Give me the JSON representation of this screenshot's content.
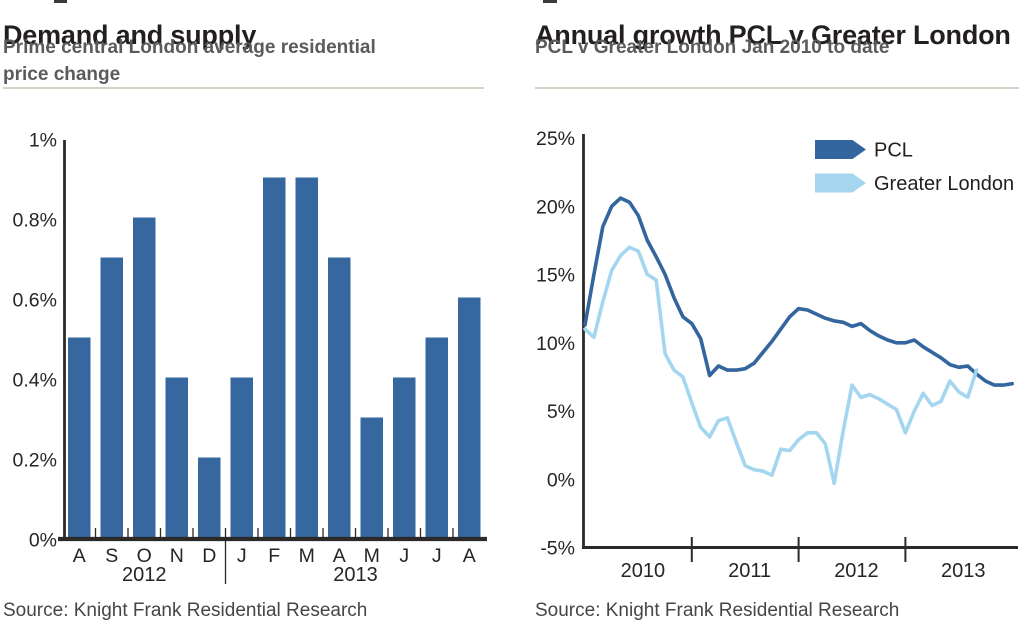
{
  "colors": {
    "bar_blue": "#36679E",
    "dark_blue": "#33659E",
    "light_blue": "#A5D6EF",
    "title_text": "#231F20",
    "subtitle_text": "#5B5B5D",
    "rule": "#D8D2C6",
    "axis": "#2B2A28",
    "axis_text": "#262524",
    "source_text": "#464547",
    "legend_text": "#231F20",
    "background": "#FFFFFF"
  },
  "chart_data": [
    {
      "id": "demand-and-supply",
      "type": "bar",
      "title": "Demand and supply",
      "subtitle_lines": [
        "Prime central London average residential",
        "price change"
      ],
      "source": "Source: Knight Frank Residential Research",
      "unit": "%",
      "categories": [
        "A",
        "S",
        "O",
        "N",
        "D",
        "J",
        "F",
        "M",
        "A",
        "M",
        "J",
        "J",
        "A"
      ],
      "values": [
        0.5,
        0.7,
        0.8,
        0.4,
        0.2,
        0.4,
        0.9,
        0.9,
        0.7,
        0.3,
        0.4,
        0.5,
        0.6
      ],
      "year_groups": [
        {
          "label": "2012",
          "from": 0,
          "to": 4
        },
        {
          "label": "2013",
          "from": 5,
          "to": 12
        }
      ],
      "ylim": [
        0,
        1
      ],
      "yticks": [
        {
          "v": 0,
          "label": "0%"
        },
        {
          "v": 0.2,
          "label": "0.2%"
        },
        {
          "v": 0.4,
          "label": "0.4%"
        },
        {
          "v": 0.6,
          "label": "0.6%"
        },
        {
          "v": 0.8,
          "label": "0.8%"
        },
        {
          "v": 1,
          "label": "1%"
        }
      ],
      "grid": false,
      "legend": "none"
    },
    {
      "id": "annual-growth-pcl-v-greater-london",
      "type": "line",
      "title": "Annual growth PCL v Greater London",
      "subtitle_lines": [
        "PCL v Greater London Jan 2010 to date"
      ],
      "source": "Source: Knight Frank Residential Research",
      "unit": "%",
      "x_start": "Jan 2010",
      "x_interval": "month",
      "series": [
        {
          "name": "PCL",
          "color": "#33659E",
          "values": [
            11.3,
            15.0,
            18.5,
            20.0,
            20.6,
            20.3,
            19.3,
            17.5,
            16.3,
            15.0,
            13.3,
            11.9,
            11.4,
            10.3,
            7.6,
            8.3,
            8.0,
            8.0,
            8.1,
            8.5,
            9.3,
            10.1,
            11.0,
            11.9,
            12.5,
            12.4,
            12.1,
            11.8,
            11.6,
            11.5,
            11.2,
            11.4,
            10.9,
            10.5,
            10.2,
            10.0,
            10.0,
            10.2,
            9.7,
            9.3,
            8.9,
            8.4,
            8.2,
            8.3,
            7.7,
            7.2,
            6.9,
            6.9,
            7.0
          ]
        },
        {
          "name": "Greater London",
          "color": "#A5D6EF",
          "values": [
            11.0,
            10.4,
            13.0,
            15.3,
            16.4,
            17.0,
            16.7,
            15.0,
            14.6,
            9.2,
            8.0,
            7.5,
            5.6,
            3.8,
            3.1,
            4.3,
            4.5,
            2.7,
            1.0,
            0.7,
            0.6,
            0.3,
            2.2,
            2.1,
            2.9,
            3.4,
            3.4,
            2.6,
            -0.3,
            3.5,
            6.9,
            6.0,
            6.2,
            5.9,
            5.5,
            5.1,
            3.4,
            5.0,
            6.3,
            5.4,
            5.7,
            7.2,
            6.4,
            6.0,
            8.0
          ]
        }
      ],
      "ylim": [
        -5,
        25
      ],
      "yticks": [
        {
          "v": 25,
          "label": "25%"
        },
        {
          "v": 20,
          "label": "20%"
        },
        {
          "v": 15,
          "label": "15%"
        },
        {
          "v": 10,
          "label": "10%"
        },
        {
          "v": 5,
          "label": "5%"
        },
        {
          "v": 0,
          "label": "0%"
        },
        {
          "v": -5,
          "label": "-5%"
        }
      ],
      "xticks_month_index": [
        12,
        24,
        36
      ],
      "xlabels": [
        {
          "label": "2010",
          "center_month_index": 6.5
        },
        {
          "label": "2011",
          "center_month_index": 18.5
        },
        {
          "label": "2012",
          "center_month_index": 30.5
        },
        {
          "label": "2013",
          "center_month_index": 42.5
        }
      ],
      "grid": false,
      "legend": "top-right"
    }
  ]
}
